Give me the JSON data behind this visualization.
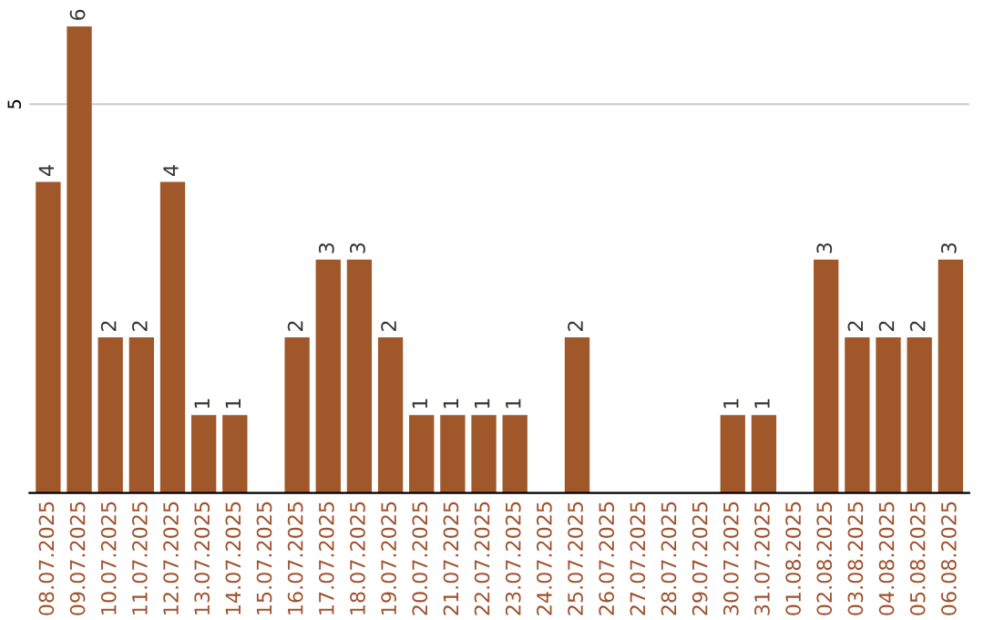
{
  "chart_data": {
    "type": "bar",
    "categories": [
      "08.07.2025",
      "09.07.2025",
      "10.07.2025",
      "11.07.2025",
      "12.07.2025",
      "13.07.2025",
      "14.07.2025",
      "15.07.2025",
      "16.07.2025",
      "17.07.2025",
      "18.07.2025",
      "19.07.2025",
      "20.07.2025",
      "21.07.2025",
      "22.07.2025",
      "23.07.2025",
      "24.07.2025",
      "25.07.2025",
      "26.07.2025",
      "27.07.2025",
      "28.07.2025",
      "29.07.2025",
      "30.07.2025",
      "31.07.2025",
      "01.08.2025",
      "02.08.2025",
      "03.08.2025",
      "04.08.2025",
      "05.08.2025",
      "06.08.2025"
    ],
    "values": [
      4,
      6,
      2,
      2,
      4,
      1,
      1,
      0,
      2,
      3,
      3,
      2,
      1,
      1,
      1,
      1,
      0,
      2,
      0,
      0,
      0,
      0,
      1,
      1,
      0,
      3,
      2,
      2,
      2,
      3
    ],
    "value_labels": [
      "4",
      "6",
      "2",
      "2",
      "4",
      "1",
      "1",
      null,
      "2",
      "3",
      "3",
      "2",
      "1",
      "1",
      "1",
      "1",
      null,
      "2",
      null,
      null,
      null,
      null,
      "1",
      "1",
      null,
      "3",
      "2",
      "2",
      "2",
      "3"
    ],
    "color": "#a0582a",
    "ref_lines": [
      {
        "axis": "y",
        "value": 5,
        "label": "5",
        "color": "#cccccc"
      }
    ]
  }
}
